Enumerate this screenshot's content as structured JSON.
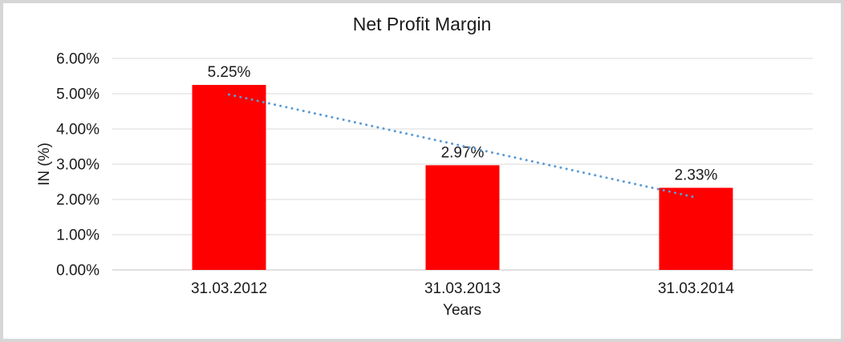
{
  "chart_data": {
    "type": "bar",
    "title": "Net Profit Margin",
    "xlabel": "Years",
    "ylabel": "IN (%)",
    "categories": [
      "31.03.2012",
      "31.03.2013",
      "31.03.2014"
    ],
    "values": [
      5.25,
      2.97,
      2.33
    ],
    "data_labels": [
      "5.25%",
      "2.97%",
      "2.33%"
    ],
    "y_tick_labels": [
      "0.00%",
      "1.00%",
      "2.00%",
      "3.00%",
      "4.00%",
      "5.00%",
      "6.00%"
    ],
    "ylim": [
      0,
      6
    ],
    "grid": true,
    "legend": "none",
    "trendline": {
      "type": "linear",
      "style": "dotted"
    },
    "colors": {
      "bar": "#FF0000",
      "trendline": "#5B9BD5",
      "gridline": "#D9D9D9",
      "axis_line": "#C0C0C0",
      "frame_border": "#D6D6D6"
    }
  }
}
